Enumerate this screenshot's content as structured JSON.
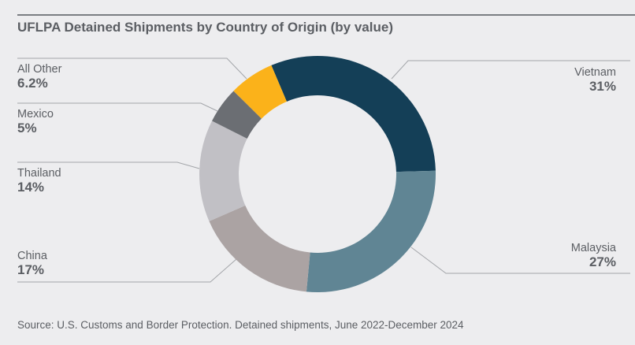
{
  "chart_data": {
    "type": "pie",
    "variant": "donut",
    "title": "UFLPA Detained Shipments by Country of Origin (by value)",
    "categories": [
      "Vietnam",
      "Malaysia",
      "China",
      "Thailand",
      "Mexico",
      "All Other"
    ],
    "values": [
      31,
      27,
      17,
      14,
      5,
      6.2
    ],
    "value_labels": [
      "31%",
      "27%",
      "17%",
      "14%",
      "5%",
      "6.2%"
    ],
    "colors": [
      "#143f57",
      "#608594",
      "#aba3a3",
      "#c1c0c5",
      "#6b6e73",
      "#fbb21a"
    ],
    "source": "Source: U.S. Customs and Border Protection. Detained shipments, June 2022-December 2024"
  }
}
